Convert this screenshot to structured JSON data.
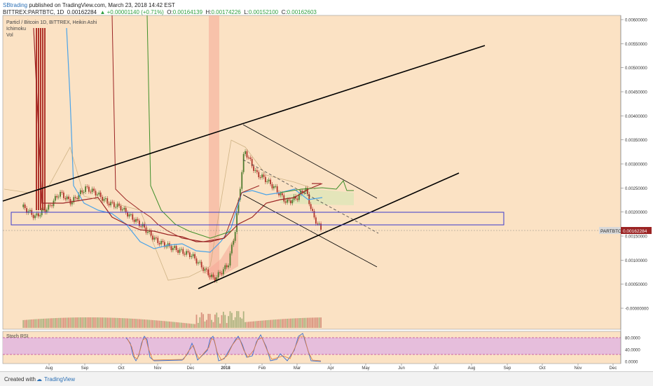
{
  "header": {
    "author": "SBtrading",
    "published": "published on TradingView.com, March 23, 2018 14:42 EST",
    "symbol": "BITTREX:PARTBTC, 1D",
    "last": "0.00162284",
    "change": "▲ +0.00001140 (+0.71%)",
    "o_label": "O:",
    "o": "0.00164139",
    "h_label": "H:",
    "h": "0.00174226",
    "l_label": "L:",
    "l": "0.00152100",
    "c_label": "C:",
    "c": "0.00162603"
  },
  "legend": {
    "title": "Particl / Bitcoin 1D, BITTREX, Heikin Ashi",
    "ind1": "Ichimoku",
    "ind2": "Vol"
  },
  "price_tag": {
    "name": "PARTBTC",
    "value": "0.00162284"
  },
  "stoch": {
    "label": "Stoch RSI"
  },
  "footer": {
    "created": "Created with",
    "brand": "TradingView"
  },
  "colors": {
    "bg": "#fbe2c4",
    "stoch_band": "#e6bedc",
    "line_blue": "#4aa3e8",
    "line_red": "#9b2424",
    "line_green": "#3f8f2a",
    "candle_up": "#4f7b2e",
    "candle_down": "#b0342a",
    "box": "#3b3bcc"
  },
  "chart_data": {
    "type": "line",
    "title": "Particl / Bitcoin 1D, BITTREX, Heikin Ashi",
    "y_ticks": [
      "0.00600000",
      "0.00550000",
      "0.00500000",
      "0.00450000",
      "0.00400000",
      "0.00350000",
      "0.00300000",
      "0.00250000",
      "0.00200000",
      "0.00150000",
      "0.00100000",
      "0.00050000",
      "-0.00000000"
    ],
    "ylim": [
      0.0,
      0.006
    ],
    "x_ticks": [
      "Aug",
      "Sep",
      "Oct",
      "Nov",
      "Dec",
      "2018",
      "Feb",
      "Mar",
      "Apr",
      "May",
      "Jun",
      "Jul",
      "Aug",
      "Sep",
      "Oct",
      "Nov",
      "Dec"
    ],
    "stoch_ticks": [
      "80.0000",
      "40.0000",
      "0.0000"
    ],
    "series": [
      {
        "x": [
          "2017-07-10",
          "2017-07-20",
          "2017-08-01",
          "2017-08-10",
          "2017-08-20",
          "2017-09-01",
          "2017-09-10",
          "2017-09-20",
          "2017-10-01",
          "2017-10-10",
          "2017-10-20",
          "2017-11-01",
          "2017-11-10",
          "2017-11-20",
          "2017-12-01",
          "2017-12-10",
          "2017-12-20",
          "2018-01-01",
          "2018-01-07",
          "2018-01-15",
          "2018-01-25",
          "2018-02-01",
          "2018-02-10",
          "2018-02-20",
          "2018-03-01",
          "2018-03-08",
          "2018-03-15",
          "2018-03-22"
        ],
        "values": [
          0.0021,
          0.0019,
          0.0021,
          0.0024,
          0.0022,
          0.0025,
          0.0024,
          0.0022,
          0.0021,
          0.0019,
          0.0017,
          0.0014,
          0.0013,
          0.0012,
          0.0011,
          0.00085,
          0.0006,
          0.0009,
          0.0016,
          0.0033,
          0.0028,
          0.0027,
          0.0025,
          0.0022,
          0.0023,
          0.0025,
          0.0019,
          0.00162
        ]
      }
    ]
  }
}
